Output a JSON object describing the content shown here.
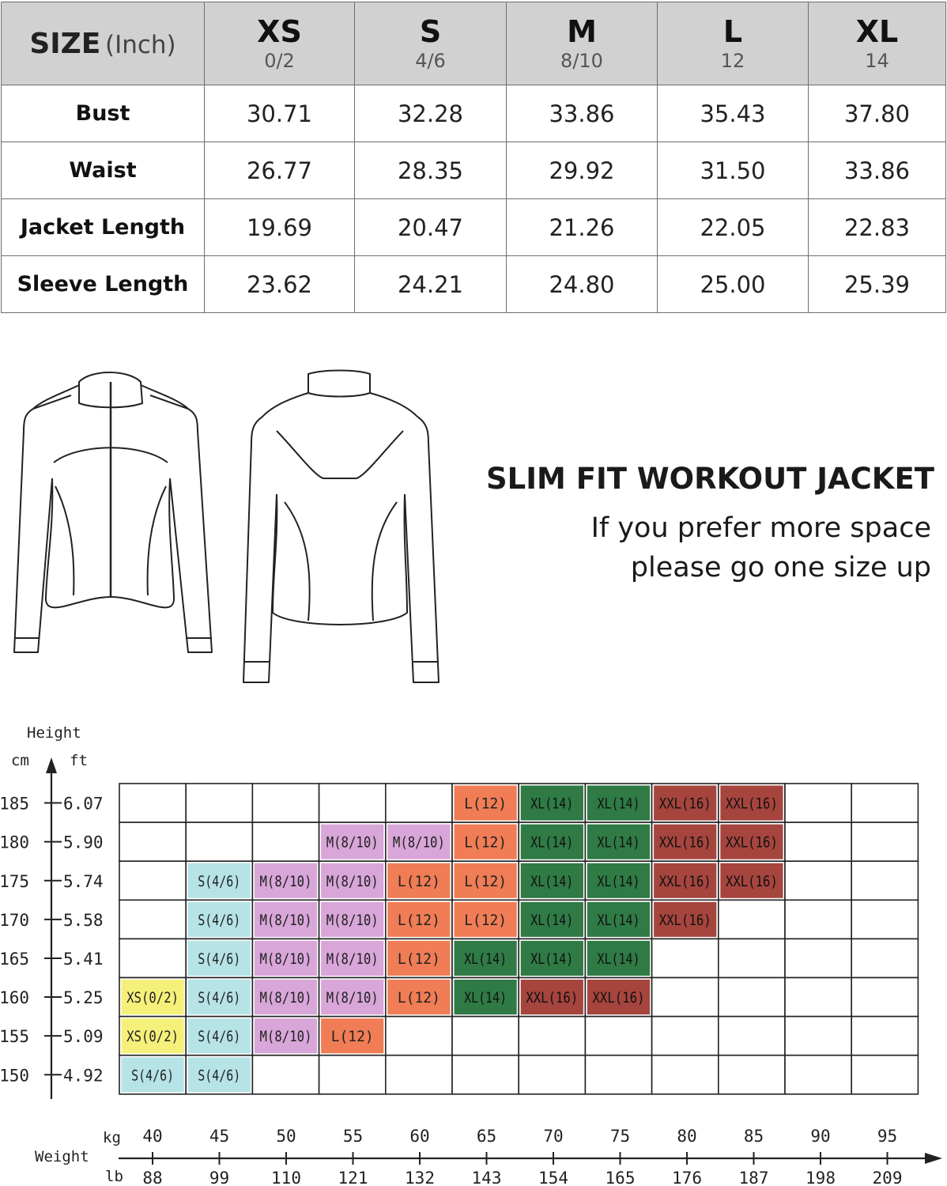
{
  "size_table": {
    "header": {
      "size_label": "SIZE",
      "unit_label": "(Inch)",
      "sizes": [
        {
          "code": "XS",
          "num": "0/2"
        },
        {
          "code": "S",
          "num": "4/6"
        },
        {
          "code": "M",
          "num": "8/10"
        },
        {
          "code": "L",
          "num": "12"
        },
        {
          "code": "XL",
          "num": "14"
        }
      ]
    },
    "rows": [
      {
        "label": "Bust",
        "values": [
          "30.71",
          "32.28",
          "33.86",
          "35.43",
          "37.80"
        ]
      },
      {
        "label": "Waist",
        "values": [
          "26.77",
          "28.35",
          "29.92",
          "31.50",
          "33.86"
        ]
      },
      {
        "label": "Jacket Length",
        "values": [
          "19.69",
          "20.47",
          "21.26",
          "22.05",
          "22.83"
        ]
      },
      {
        "label": "Sleeve Length",
        "values": [
          "23.62",
          "24.21",
          "24.80",
          "25.00",
          "25.39"
        ]
      }
    ]
  },
  "promo": {
    "title": "SLIM FIT WORKOUT JACKET",
    "line1": "If you prefer more space",
    "line2": "please go one size up"
  },
  "fit_chart": {
    "height_axis_label": "Height",
    "cm_label": "cm",
    "ft_label": "ft",
    "weight_axis_label": "Weight",
    "kg_label": "kg",
    "lb_label": "lb",
    "heights_cm": [
      "185",
      "180",
      "175",
      "170",
      "165",
      "160",
      "155",
      "150"
    ],
    "heights_ft": [
      "6.07",
      "5.90",
      "5.74",
      "5.58",
      "5.41",
      "5.25",
      "5.09",
      "4.92"
    ],
    "weights_kg": [
      "40",
      "45",
      "50",
      "55",
      "60",
      "65",
      "70",
      "75",
      "80",
      "85",
      "90",
      "95"
    ],
    "weights_lb": [
      "88",
      "99",
      "110",
      "121",
      "132",
      "143",
      "154",
      "165",
      "176",
      "187",
      "198",
      "209"
    ],
    "size_colors": {
      "XS(0/2)": "#f5f07a",
      "S(4/6)": "#b6e3e6",
      "M(8/10)": "#d8a6d8",
      "L(12)": "#f07d55",
      "XL(14)": "#2f7a45",
      "XXL(16)": "#a6443e"
    },
    "grid": [
      [
        "",
        "",
        "",
        "",
        "",
        "L(12)",
        "XL(14)",
        "XL(14)",
        "XXL(16)",
        "XXL(16)",
        "",
        ""
      ],
      [
        "",
        "",
        "",
        "M(8/10)",
        "M(8/10)",
        "L(12)",
        "XL(14)",
        "XL(14)",
        "XXL(16)",
        "XXL(16)",
        "",
        ""
      ],
      [
        "",
        "S(4/6)",
        "M(8/10)",
        "M(8/10)",
        "L(12)",
        "L(12)",
        "XL(14)",
        "XL(14)",
        "XXL(16)",
        "XXL(16)",
        "",
        ""
      ],
      [
        "",
        "S(4/6)",
        "M(8/10)",
        "M(8/10)",
        "L(12)",
        "L(12)",
        "XL(14)",
        "XL(14)",
        "XXL(16)",
        "",
        "",
        ""
      ],
      [
        "",
        "S(4/6)",
        "M(8/10)",
        "M(8/10)",
        "L(12)",
        "XL(14)",
        "XL(14)",
        "XL(14)",
        "",
        "",
        "",
        ""
      ],
      [
        "XS(0/2)",
        "S(4/6)",
        "M(8/10)",
        "M(8/10)",
        "L(12)",
        "XL(14)",
        "XXL(16)",
        "XXL(16)",
        "",
        "",
        "",
        ""
      ],
      [
        "XS(0/2)",
        "S(4/6)",
        "M(8/10)",
        "L(12)",
        "",
        "",
        "",
        "",
        "",
        "",
        "",
        ""
      ],
      [
        "S(4/6)",
        "S(4/6)",
        "",
        "",
        "",
        "",
        "",
        "",
        "",
        "",
        "",
        ""
      ]
    ]
  }
}
